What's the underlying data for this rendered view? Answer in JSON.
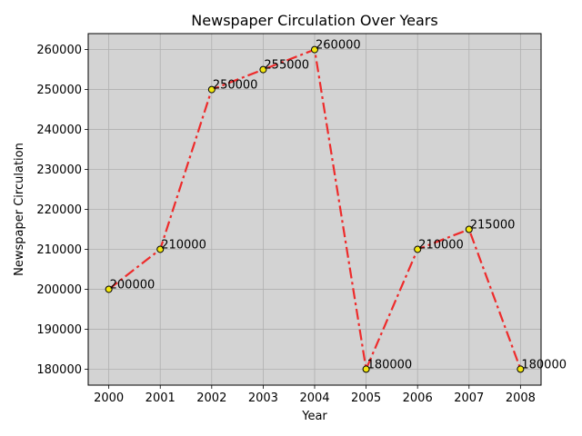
{
  "chart_data": {
    "type": "line",
    "title": "Newspaper Circulation Over Years",
    "xlabel": "Year",
    "ylabel": "Newspaper Circulation",
    "x": [
      2000,
      2001,
      2002,
      2003,
      2004,
      2005,
      2006,
      2007,
      2008
    ],
    "series": [
      {
        "values": [
          200000,
          210000,
          250000,
          255000,
          260000,
          180000,
          210000,
          215000,
          180000
        ],
        "line_color": "#ee2b2b",
        "line_style": "dash-dot",
        "marker": "circle",
        "marker_fill": "#f2e60f",
        "marker_edge": "#000000"
      }
    ],
    "data_labels": [
      "200000",
      "210000",
      "250000",
      "255000",
      "260000",
      "180000",
      "210000",
      "215000",
      "180000"
    ],
    "xlim": [
      1999.6,
      2008.4
    ],
    "ylim": [
      176000,
      264000
    ],
    "xticks": [
      "2000",
      "2001",
      "2002",
      "2003",
      "2004",
      "2005",
      "2006",
      "2007",
      "2008"
    ],
    "yticks": [
      "180000",
      "190000",
      "200000",
      "210000",
      "220000",
      "230000",
      "240000",
      "250000",
      "260000"
    ],
    "grid": true,
    "plot_background": "#d3d3d3",
    "grid_color": "#b0b0b0"
  }
}
